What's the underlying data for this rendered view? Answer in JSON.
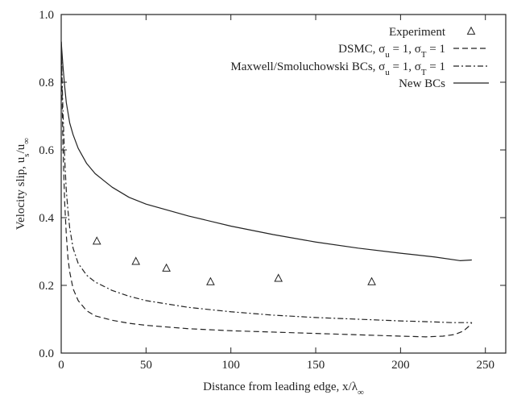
{
  "chart_data": {
    "type": "line",
    "xlabel": "Distance from leading edge, x/λ∞",
    "ylabel": "Velocity slip, us/u∞",
    "xlim": [
      0,
      262
    ],
    "ylim": [
      0,
      1.0
    ],
    "xticks": [
      0,
      50,
      100,
      150,
      200,
      250
    ],
    "yticks": [
      0.0,
      0.2,
      0.4,
      0.6,
      0.8,
      1.0
    ],
    "xtick_labels": [
      "0",
      "50",
      "100",
      "150",
      "200",
      "250"
    ],
    "ytick_labels": [
      "0.0",
      "0.2",
      "0.4",
      "0.6",
      "0.8",
      "1.0"
    ],
    "grid": false,
    "legend_position": "top-right",
    "series": [
      {
        "name": "Experiment",
        "kind": "scatter",
        "marker": "triangle",
        "x": [
          21,
          44,
          62,
          88,
          128,
          183
        ],
        "y": [
          0.33,
          0.27,
          0.25,
          0.21,
          0.22,
          0.21
        ]
      },
      {
        "name": "DSMC, σu = 1, σT = 1",
        "kind": "line",
        "style": "dashed",
        "x": [
          0,
          1,
          2,
          3,
          4,
          5,
          7,
          10,
          15,
          20,
          30,
          40,
          50,
          75,
          100,
          125,
          150,
          175,
          200,
          215,
          225,
          232,
          237,
          240,
          242
        ],
        "y": [
          0.92,
          0.62,
          0.45,
          0.35,
          0.28,
          0.24,
          0.19,
          0.155,
          0.125,
          0.11,
          0.097,
          0.088,
          0.082,
          0.072,
          0.066,
          0.062,
          0.058,
          0.054,
          0.05,
          0.048,
          0.05,
          0.055,
          0.065,
          0.078,
          0.09
        ]
      },
      {
        "name": "Maxwell/Smoluchowski BCs, σu = 1, σT = 1",
        "kind": "line",
        "style": "dash-dot",
        "x": [
          0,
          1,
          2,
          3,
          4,
          5,
          7,
          10,
          15,
          20,
          30,
          40,
          50,
          75,
          100,
          125,
          150,
          175,
          200,
          220,
          230,
          242
        ],
        "y": [
          0.92,
          0.72,
          0.58,
          0.48,
          0.42,
          0.37,
          0.31,
          0.265,
          0.23,
          0.21,
          0.185,
          0.168,
          0.155,
          0.135,
          0.122,
          0.112,
          0.105,
          0.1,
          0.095,
          0.092,
          0.09,
          0.09
        ]
      },
      {
        "name": "New BCs",
        "kind": "line",
        "style": "solid",
        "x": [
          0,
          1,
          2,
          3,
          4,
          5,
          7,
          10,
          15,
          20,
          30,
          40,
          50,
          75,
          100,
          125,
          150,
          175,
          200,
          220,
          235,
          242
        ],
        "y": [
          0.92,
          0.85,
          0.79,
          0.74,
          0.71,
          0.68,
          0.645,
          0.605,
          0.56,
          0.53,
          0.49,
          0.46,
          0.44,
          0.405,
          0.375,
          0.35,
          0.328,
          0.31,
          0.295,
          0.284,
          0.273,
          0.275
        ]
      }
    ]
  }
}
